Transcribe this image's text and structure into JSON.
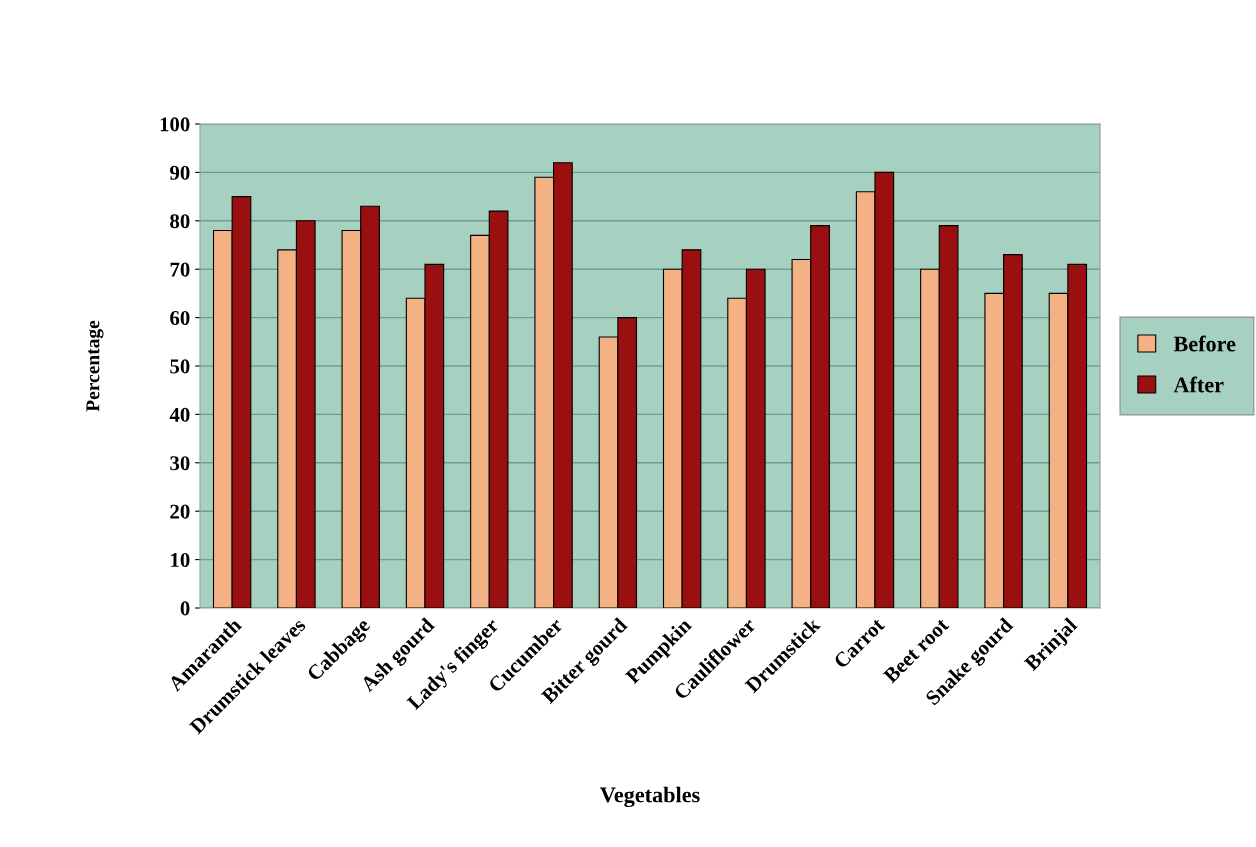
{
  "chart_data": {
    "type": "bar",
    "xlabel": "Vegetables",
    "ylabel": "Percentage",
    "categories": [
      "Amaranth",
      "Drumstick leaves",
      "Cabbage",
      "Ash gourd",
      "Lady's finger",
      "Cucumber",
      "Bitter gourd",
      "Pumpkin",
      "Cauliflower",
      "Drumstick",
      "Carrot",
      "Beet root",
      "Snake gourd",
      "Brinjal"
    ],
    "series": [
      {
        "name": "Before",
        "color": "#f4b183",
        "values": [
          78,
          74,
          78,
          64,
          77,
          89,
          56,
          70,
          64,
          72,
          86,
          70,
          65,
          65
        ]
      },
      {
        "name": "After",
        "color": "#9a0f0f",
        "values": [
          85,
          80,
          83,
          71,
          82,
          92,
          60,
          74,
          70,
          79,
          90,
          79,
          73,
          71
        ]
      }
    ],
    "ylim": [
      0,
      100
    ],
    "yticks": [
      0,
      10,
      20,
      30,
      40,
      50,
      60,
      70,
      80,
      90,
      100
    ],
    "grid": "y",
    "legend": "right"
  }
}
